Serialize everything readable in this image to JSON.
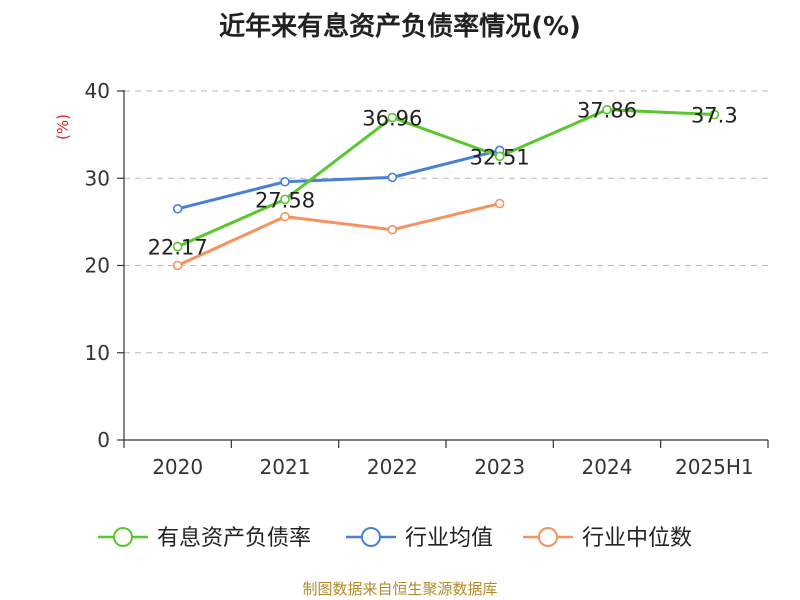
{
  "title": "近年来有息资产负债率情况(%)",
  "source": "制图数据来自恒生聚源数据库",
  "chart_data": {
    "type": "line",
    "title": "近年来有息资产负债率情况(%)",
    "ylabel": "(%)",
    "xlabel": "",
    "categories": [
      "2020",
      "2021",
      "2022",
      "2023",
      "2024",
      "2025H1"
    ],
    "ylim": [
      0,
      40
    ],
    "yticks": [
      0,
      10,
      20,
      30,
      40
    ],
    "grid": true,
    "legend_position": "bottom",
    "series": [
      {
        "name": "有息资产负债率",
        "color": "#5ac72e",
        "values": [
          22.17,
          27.58,
          36.96,
          32.51,
          37.86,
          37.3
        ],
        "labels": [
          "22.17",
          "27.58",
          "36.96",
          "32.51",
          "37.86",
          "37.3"
        ]
      },
      {
        "name": "行业均值",
        "color": "#4a7fd6",
        "values": [
          26.5,
          29.6,
          30.1,
          33.2,
          null,
          null
        ]
      },
      {
        "name": "行业中位数",
        "color": "#f5925e",
        "values": [
          20.0,
          25.6,
          24.1,
          27.1,
          null,
          null
        ]
      }
    ]
  }
}
